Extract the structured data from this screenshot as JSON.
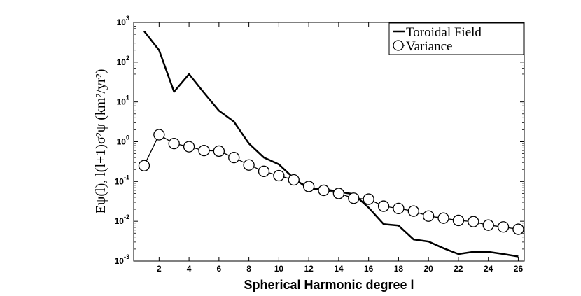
{
  "chart_data": {
    "type": "line",
    "title": "",
    "xlabel": "Spherical Harmonic degree  l",
    "ylabel": "Eψ(l), l(l+1)σ²ψ    (km²/yr²)",
    "xlim": [
      0.3,
      26.4
    ],
    "ylim": [
      0.001,
      1000
    ],
    "yscale": "log",
    "grid": false,
    "legend_position": "top-right",
    "x_ticks": [
      2,
      4,
      6,
      8,
      10,
      12,
      14,
      16,
      18,
      20,
      22,
      24,
      26
    ],
    "y_ticks": [
      {
        "value": 0.001,
        "base": "10",
        "exp": "-3"
      },
      {
        "value": 0.01,
        "base": "10",
        "exp": "-2"
      },
      {
        "value": 0.1,
        "base": "10",
        "exp": "-1"
      },
      {
        "value": 1,
        "base": "10",
        "exp": "0"
      },
      {
        "value": 10,
        "base": "10",
        "exp": "1"
      },
      {
        "value": 100,
        "base": "10",
        "exp": "2"
      },
      {
        "value": 1000,
        "base": "10",
        "exp": "3"
      }
    ],
    "series": [
      {
        "name": "Toroidal Field",
        "marker": "none",
        "color": "#000000",
        "x": [
          1,
          2,
          3,
          4,
          5,
          6,
          7,
          8,
          9,
          10,
          11,
          12,
          13,
          14,
          15,
          16,
          17,
          18,
          19,
          20,
          21,
          22,
          23,
          24,
          25,
          26
        ],
        "values": [
          600,
          200,
          18,
          50,
          17,
          6,
          3.2,
          0.9,
          0.4,
          0.27,
          0.12,
          0.065,
          0.065,
          0.055,
          0.048,
          0.022,
          0.0085,
          0.0078,
          0.0035,
          0.0031,
          0.0021,
          0.0015,
          0.0017,
          0.0017,
          0.0015,
          0.0013
        ]
      },
      {
        "name": "Variance",
        "marker": "circle",
        "color": "#000000",
        "x": [
          1,
          2,
          3,
          4,
          5,
          6,
          7,
          8,
          9,
          10,
          11,
          12,
          13,
          14,
          15,
          16,
          17,
          18,
          19,
          20,
          21,
          22,
          23,
          24,
          25,
          26
        ],
        "values": [
          0.25,
          1.5,
          0.9,
          0.75,
          0.6,
          0.58,
          0.4,
          0.26,
          0.18,
          0.14,
          0.11,
          0.075,
          0.06,
          0.05,
          0.038,
          0.036,
          0.024,
          0.021,
          0.018,
          0.0135,
          0.012,
          0.0105,
          0.0098,
          0.008,
          0.0072,
          0.0063
        ]
      }
    ]
  }
}
